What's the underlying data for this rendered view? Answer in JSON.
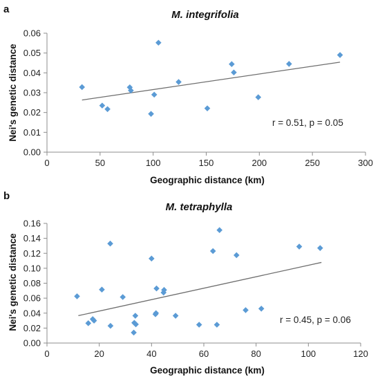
{
  "chart_data": [
    {
      "panel_letter": "a",
      "type": "scatter",
      "title": "M. integrifolia",
      "xlabel": "Geographic distance (km)",
      "ylabel": "Nei's genetic distance",
      "xlim": [
        0,
        300
      ],
      "ylim": [
        0,
        0.06
      ],
      "xticks": [
        "0",
        "50",
        "100",
        "150",
        "200",
        "250",
        "300"
      ],
      "yticks": [
        "0.00",
        "0.01",
        "0.02",
        "0.03",
        "0.04",
        "0.05",
        "0.06"
      ],
      "xtick_values": [
        0,
        50,
        100,
        150,
        200,
        250,
        300
      ],
      "ytick_values": [
        0,
        0.01,
        0.02,
        0.03,
        0.04,
        0.05,
        0.06
      ],
      "annotation": "r = 0.51, p = 0.05",
      "marker_color": "#5b9bd5",
      "trendline": {
        "x": [
          33,
          276
        ],
        "y": [
          0.0263,
          0.0454
        ]
      },
      "points": [
        {
          "x": 33,
          "y": 0.0328
        },
        {
          "x": 52,
          "y": 0.0235
        },
        {
          "x": 57,
          "y": 0.0217
        },
        {
          "x": 78,
          "y": 0.0327
        },
        {
          "x": 79,
          "y": 0.0311
        },
        {
          "x": 98,
          "y": 0.0193
        },
        {
          "x": 101,
          "y": 0.029
        },
        {
          "x": 105,
          "y": 0.0552
        },
        {
          "x": 124,
          "y": 0.0354
        },
        {
          "x": 151,
          "y": 0.0221
        },
        {
          "x": 174,
          "y": 0.0444
        },
        {
          "x": 176,
          "y": 0.0402
        },
        {
          "x": 199,
          "y": 0.0277
        },
        {
          "x": 228,
          "y": 0.0445
        },
        {
          "x": 276,
          "y": 0.049
        }
      ]
    },
    {
      "panel_letter": "b",
      "type": "scatter",
      "title": "M. tetraphylla",
      "xlabel": "Geographic distance (km)",
      "ylabel": "Nei's genetic distance",
      "xlim": [
        0,
        120
      ],
      "ylim": [
        0,
        0.16
      ],
      "xticks": [
        "0",
        "20",
        "40",
        "60",
        "80",
        "100",
        "120"
      ],
      "yticks": [
        "0.00",
        "0.02",
        "0.04",
        "0.06",
        "0.08",
        "0.10",
        "0.12",
        "0.14",
        "0.16"
      ],
      "xtick_values": [
        0,
        20,
        40,
        60,
        80,
        100,
        120
      ],
      "ytick_values": [
        0,
        0.02,
        0.04,
        0.06,
        0.08,
        0.1,
        0.12,
        0.14,
        0.16
      ],
      "annotation": "r = 0.45, p = 0.06",
      "marker_color": "#5b9bd5",
      "trendline": {
        "x": [
          12,
          105
        ],
        "y": [
          0.0366,
          0.1078
        ]
      },
      "points": [
        {
          "x": 11.5,
          "y": 0.0625
        },
        {
          "x": 15.8,
          "y": 0.0265
        },
        {
          "x": 17.5,
          "y": 0.032
        },
        {
          "x": 18.0,
          "y": 0.03
        },
        {
          "x": 21.0,
          "y": 0.0715
        },
        {
          "x": 24.2,
          "y": 0.133
        },
        {
          "x": 24.3,
          "y": 0.023
        },
        {
          "x": 29.0,
          "y": 0.0615
        },
        {
          "x": 33.2,
          "y": 0.014
        },
        {
          "x": 33.4,
          "y": 0.027
        },
        {
          "x": 33.8,
          "y": 0.0365
        },
        {
          "x": 34.0,
          "y": 0.025
        },
        {
          "x": 40.0,
          "y": 0.113
        },
        {
          "x": 41.5,
          "y": 0.0385
        },
        {
          "x": 41.7,
          "y": 0.04
        },
        {
          "x": 41.9,
          "y": 0.073
        },
        {
          "x": 44.6,
          "y": 0.0675
        },
        {
          "x": 44.8,
          "y": 0.071
        },
        {
          "x": 49.2,
          "y": 0.0365
        },
        {
          "x": 58.2,
          "y": 0.0245
        },
        {
          "x": 63.5,
          "y": 0.123
        },
        {
          "x": 65.0,
          "y": 0.0245
        },
        {
          "x": 66.0,
          "y": 0.151
        },
        {
          "x": 72.5,
          "y": 0.1175
        },
        {
          "x": 76.0,
          "y": 0.044
        },
        {
          "x": 82.0,
          "y": 0.046
        },
        {
          "x": 96.5,
          "y": 0.129
        },
        {
          "x": 104.5,
          "y": 0.127
        }
      ]
    }
  ]
}
